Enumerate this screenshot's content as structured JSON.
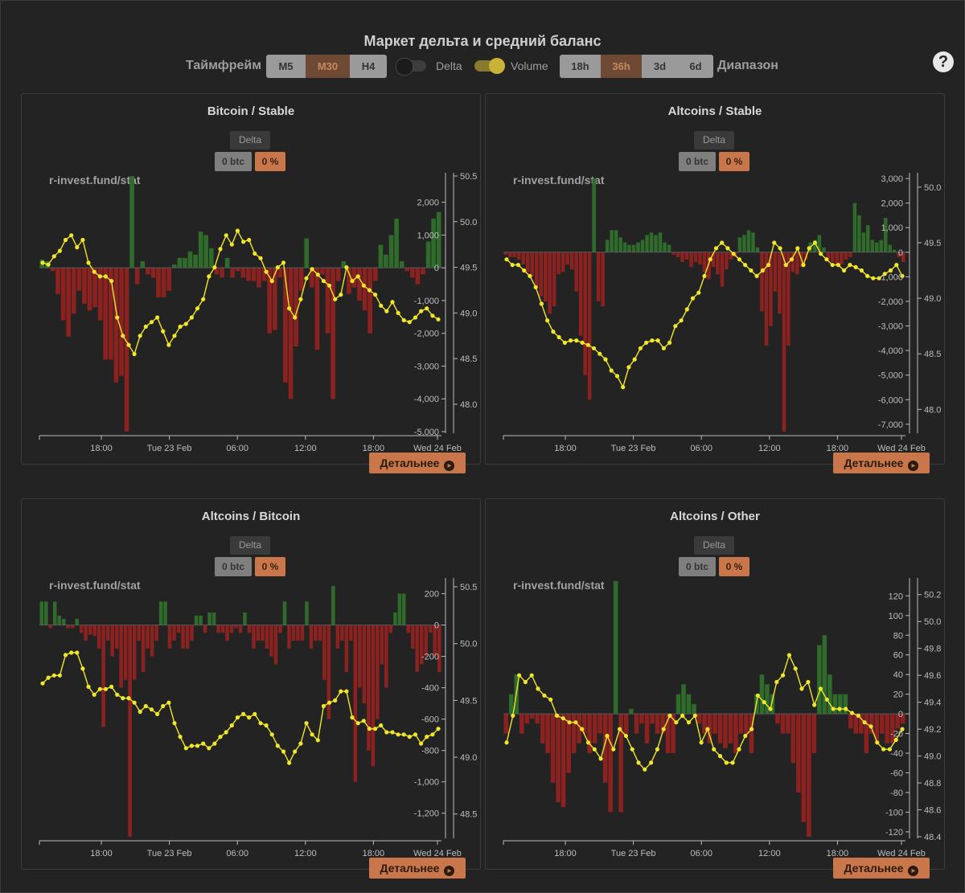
{
  "header": {
    "title": "Маркет дельта и средний баланс",
    "timeframe_label": "Таймфрейм",
    "timeframes": [
      "M5",
      "M30",
      "H4"
    ],
    "timeframe_selected": "M30",
    "delta_toggle_label": "Delta",
    "delta_toggle_on": false,
    "volume_toggle_label": "Volume",
    "volume_toggle_on": true,
    "ranges": [
      "18h",
      "36h",
      "3d",
      "6d"
    ],
    "range_selected": "36h",
    "range_label": "Диапазон",
    "help_icon": "question-circle-icon"
  },
  "colors": {
    "positive": "#2f6b2a",
    "negative": "#8b2220",
    "line": "#f0e62b",
    "accent": "#c8764a"
  },
  "chart_data": [
    {
      "type": "bar+line",
      "title": "Bitcoin / Stable",
      "delta_tag": "Delta",
      "value_btc": "0 btc",
      "value_pct": "0 %",
      "watermark": "r-invest.fund/stat",
      "x_ticks": [
        "18:00",
        "Tue 23 Feb",
        "06:00",
        "12:00",
        "18:00",
        "Wed 24 Feb"
      ],
      "bars_axis": {
        "ticks": [
          "2,000",
          "1,000",
          "0",
          "-1,000",
          "-2,000",
          "-3,000",
          "-4,000",
          "-5,000"
        ],
        "ylim": [
          -5000,
          2800
        ]
      },
      "line_axis": {
        "ticks": [
          "50.5",
          "50.0",
          "49.5",
          "49.0",
          "48.5",
          "48.0"
        ],
        "ylim": [
          47.7,
          50.5
        ]
      },
      "bars": [
        250,
        200,
        -100,
        -800,
        -1600,
        -2100,
        -1400,
        -700,
        -1100,
        -1300,
        -1200,
        -1600,
        -2800,
        -2800,
        -3500,
        -3300,
        -5000,
        2800,
        -500,
        200,
        -200,
        -300,
        -900,
        -900,
        -700,
        100,
        300,
        300,
        500,
        400,
        1100,
        1000,
        600,
        -200,
        -300,
        300,
        -300,
        -100,
        -300,
        -400,
        -400,
        -600,
        -400,
        -2000,
        -1900,
        -300,
        -3500,
        -4000,
        -2400,
        -700,
        900,
        -600,
        -2500,
        -200,
        -2000,
        -4000,
        -400,
        200,
        -800,
        -600,
        -1000,
        -1300,
        -2000,
        -400,
        700,
        400,
        1000,
        1500,
        200,
        -100,
        -300,
        -500,
        -200,
        800,
        1500,
        1700
      ],
      "line": [
        49.55,
        49.53,
        49.62,
        49.68,
        49.8,
        49.85,
        49.72,
        49.8,
        49.55,
        49.45,
        49.4,
        49.4,
        49.35,
        48.95,
        48.75,
        48.65,
        48.55,
        48.75,
        48.85,
        48.9,
        48.95,
        48.8,
        48.65,
        48.75,
        48.85,
        48.88,
        48.95,
        49.05,
        49.15,
        49.4,
        49.5,
        49.7,
        49.85,
        49.75,
        49.9,
        49.78,
        49.8,
        49.65,
        49.6,
        49.45,
        49.35,
        49.5,
        49.55,
        49.05,
        48.95,
        49.15,
        49.38,
        49.48,
        49.42,
        49.35,
        49.3,
        49.15,
        49.2,
        49.5,
        49.35,
        49.4,
        49.3,
        49.25,
        49.2,
        49.08,
        49.02,
        49.12,
        49.0,
        48.92,
        48.9,
        48.95,
        49.02,
        49.05,
        48.97,
        48.93
      ],
      "line_color": "#f0e62b",
      "grid": false
    },
    {
      "type": "bar+line",
      "title": "Altcoins / Stable",
      "delta_tag": "Delta",
      "value_btc": "0 btc",
      "value_pct": "0 %",
      "watermark": "r-invest.fund/stat",
      "x_ticks": [
        "18:00",
        "Tue 23 Feb",
        "06:00",
        "12:00",
        "18:00",
        "Wed 24 Feb"
      ],
      "bars_axis": {
        "ticks": [
          "3,000",
          "2,000",
          "1,000",
          "0",
          "-1,000",
          "-2,000",
          "-3,000",
          "-4,000",
          "-5,000",
          "-6,000",
          "-7,000"
        ],
        "ylim": [
          -7300,
          3100
        ]
      },
      "line_axis": {
        "ticks": [
          "50.0",
          "49.5",
          "49.0",
          "48.5",
          "48.0"
        ],
        "ylim": [
          47.8,
          50.1
        ]
      },
      "bars": [
        -100,
        -200,
        -200,
        -300,
        -500,
        -800,
        -1000,
        -1400,
        -1800,
        -2000,
        -2500,
        -2200,
        -900,
        -800,
        -500,
        -700,
        -1600,
        -3400,
        -5000,
        -6000,
        3000,
        -2000,
        -2200,
        500,
        900,
        900,
        600,
        400,
        300,
        300,
        400,
        500,
        700,
        800,
        700,
        800,
        400,
        300,
        -100,
        -200,
        -400,
        -300,
        -600,
        -400,
        -500,
        -800,
        -1100,
        -600,
        -900,
        -1400,
        -700,
        -300,
        -200,
        600,
        700,
        900,
        800,
        200,
        -2400,
        -3800,
        -3000,
        -1600,
        -2500,
        -7300,
        -3800,
        -800,
        -900,
        -600,
        -300,
        400,
        500,
        700,
        200,
        -300,
        -400,
        -500,
        -500,
        -300,
        -200,
        2000,
        1500,
        800,
        1100,
        500,
        400,
        500,
        1400,
        300,
        100,
        -200,
        -400
      ],
      "line": [
        49.35,
        49.3,
        49.3,
        49.25,
        49.2,
        49.1,
        48.95,
        48.8,
        48.7,
        48.65,
        48.6,
        48.62,
        48.62,
        48.6,
        48.58,
        48.55,
        48.5,
        48.45,
        48.35,
        48.3,
        48.2,
        48.38,
        48.45,
        48.55,
        48.6,
        48.62,
        48.62,
        48.55,
        48.6,
        48.75,
        48.8,
        48.9,
        49.0,
        49.05,
        49.2,
        49.35,
        49.45,
        49.5,
        49.45,
        49.4,
        49.35,
        49.3,
        49.25,
        49.2,
        49.25,
        49.3,
        49.5,
        49.45,
        49.3,
        49.35,
        49.45,
        49.3,
        49.45,
        49.5,
        49.4,
        49.35,
        49.3,
        49.3,
        49.25,
        49.3,
        49.28,
        49.25,
        49.2,
        49.18,
        49.18,
        49.22,
        49.25,
        49.3,
        49.2
      ],
      "line_color": "#f0e62b",
      "grid": false
    },
    {
      "type": "bar+line",
      "title": "Altcoins / Bitcoin",
      "delta_tag": "Delta",
      "value_btc": "0 btc",
      "value_pct": "0 %",
      "watermark": "r-invest.fund/stat",
      "x_ticks": [
        "18:00",
        "Tue 23 Feb",
        "06:00",
        "12:00",
        "18:00",
        "Wed 24 Feb"
      ],
      "bars_axis": {
        "ticks": [
          "200",
          "0",
          "-200",
          "-400",
          "-600",
          "-800",
          "-1,000",
          "-1,200"
        ],
        "ylim": [
          -1350,
          280
        ]
      },
      "line_axis": {
        "ticks": [
          "50.5",
          "50.0",
          "49.5",
          "49.0",
          "48.5"
        ],
        "ylim": [
          48.3,
          50.55
        ]
      },
      "bars": [
        150,
        150,
        -20,
        150,
        60,
        40,
        -20,
        -20,
        40,
        -50,
        -100,
        -60,
        -70,
        -150,
        -650,
        -100,
        -200,
        -150,
        -400,
        -350,
        -1350,
        -350,
        -100,
        -300,
        -150,
        -200,
        -100,
        150,
        150,
        -150,
        -100,
        -50,
        -150,
        -150,
        -100,
        60,
        60,
        -50,
        80,
        80,
        -50,
        -50,
        -100,
        -50,
        -20,
        -50,
        80,
        -50,
        -150,
        -100,
        -100,
        -150,
        -200,
        -250,
        -50,
        150,
        -150,
        -100,
        -100,
        -100,
        150,
        -150,
        -100,
        -100,
        -350,
        -600,
        250,
        -150,
        -100,
        -300,
        -100,
        -1000,
        -400,
        -500,
        -800,
        -900,
        -600,
        -250,
        -400,
        -50,
        80,
        200,
        200,
        -50,
        -150,
        -300,
        -250,
        -200,
        -50,
        -200,
        -300
      ],
      "line": [
        49.65,
        49.7,
        49.72,
        49.72,
        49.9,
        49.92,
        49.92,
        49.78,
        49.62,
        49.55,
        49.6,
        49.6,
        49.62,
        49.55,
        49.52,
        49.52,
        49.48,
        49.4,
        49.45,
        49.42,
        49.38,
        49.45,
        49.48,
        49.3,
        49.18,
        49.08,
        49.1,
        49.1,
        49.12,
        49.08,
        49.12,
        49.18,
        49.22,
        49.28,
        49.35,
        49.38,
        49.35,
        49.38,
        49.3,
        49.28,
        49.2,
        49.1,
        49.05,
        48.95,
        49.05,
        49.12,
        49.3,
        49.2,
        49.15,
        49.45,
        49.48,
        49.5,
        49.58,
        49.58,
        49.35,
        49.3,
        49.32,
        49.25,
        49.25,
        49.28,
        49.22,
        49.22,
        49.2,
        49.2,
        49.18,
        49.2,
        49.12,
        49.18,
        49.2,
        49.25
      ],
      "line_color": "#f0e62b",
      "grid": false
    },
    {
      "type": "bar+line",
      "title": "Altcoins / Other",
      "delta_tag": "Delta",
      "value_btc": "0 btc",
      "value_pct": "0 %",
      "watermark": "r-invest.fund/stat",
      "x_ticks": [
        "18:00",
        "Tue 23 Feb",
        "06:00",
        "12:00",
        "18:00",
        "Wed 24 Feb"
      ],
      "bars_axis": {
        "ticks": [
          "120",
          "100",
          "80",
          "60",
          "40",
          "20",
          "0",
          "-20",
          "-40",
          "-60",
          "-80",
          "-100",
          "-120"
        ],
        "ylim": [
          -125,
          135
        ]
      },
      "line_axis": {
        "ticks": [
          "50.2",
          "50.0",
          "49.8",
          "49.6",
          "49.4",
          "49.2",
          "49.0",
          "48.8",
          "48.6",
          "48.4"
        ],
        "ylim": [
          48.4,
          50.3
        ]
      },
      "bars": [
        -20,
        20,
        40,
        -20,
        -10,
        -5,
        -10,
        -30,
        -40,
        -70,
        -90,
        -95,
        -60,
        -40,
        -30,
        -20,
        -40,
        -30,
        -20,
        -70,
        -100,
        135,
        -100,
        -20,
        5,
        -20,
        -10,
        -30,
        -10,
        -20,
        -20,
        -40,
        -40,
        20,
        30,
        20,
        10,
        -10,
        -20,
        -30,
        -20,
        -30,
        -35,
        -30,
        -40,
        -20,
        -20,
        -40,
        20,
        40,
        30,
        20,
        -10,
        -20,
        -20,
        -50,
        -80,
        -110,
        -125,
        -40,
        70,
        80,
        40,
        20,
        20,
        20,
        -15,
        -20,
        -20,
        -40,
        -20,
        -30,
        -20,
        -30,
        -30,
        -15,
        -10
      ],
      "line": [
        49.1,
        49.3,
        49.6,
        49.55,
        49.6,
        49.5,
        49.45,
        49.42,
        49.3,
        49.28,
        49.25,
        49.25,
        49.2,
        49.1,
        49.05,
        48.98,
        49.15,
        49.05,
        49.2,
        49.15,
        49.05,
        48.95,
        48.9,
        48.95,
        49.05,
        49.2,
        49.3,
        49.25,
        49.3,
        49.25,
        49.3,
        49.1,
        49.2,
        49.05,
        49.0,
        48.95,
        48.95,
        49.05,
        49.15,
        49.2,
        49.45,
        49.4,
        49.35,
        49.55,
        49.6,
        49.75,
        49.65,
        49.5,
        49.55,
        49.38,
        49.5,
        49.42,
        49.35,
        49.35,
        49.35,
        49.32,
        49.3,
        49.25,
        49.22,
        49.1,
        49.05,
        49.05,
        49.12,
        49.2
      ],
      "line_color": "#f0e62b",
      "grid": false
    }
  ],
  "panels_common": {
    "more_label": "Детальнее",
    "more_icon": "chevron-right-circle-icon"
  }
}
